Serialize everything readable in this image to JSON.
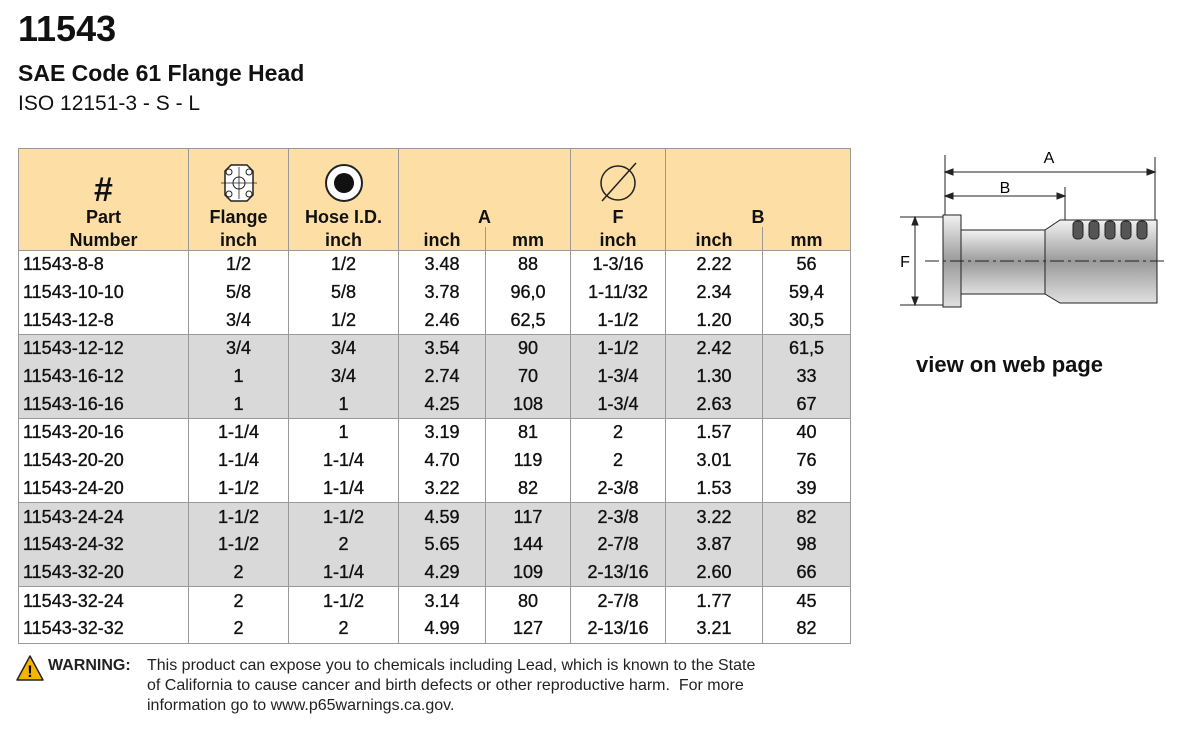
{
  "header": {
    "title": "11543",
    "subtitle": "SAE Code 61 Flange Head",
    "standard": "ISO 12151-3 - S - L"
  },
  "table": {
    "head": {
      "hash": "#",
      "part": "Part",
      "flange": "Flange",
      "hose": "Hose I.D.",
      "a": "A",
      "f": "F",
      "b": "B"
    },
    "units": [
      "Number",
      "inch",
      "inch",
      "inch",
      "mm",
      "inch",
      "inch",
      "mm"
    ],
    "rows": [
      [
        "11543-8-8",
        "1/2",
        "1/2",
        "3.48",
        "88",
        "1-3/16",
        "2.22",
        "56"
      ],
      [
        "11543-10-10",
        "5/8",
        "5/8",
        "3.78",
        "96,0",
        "1-11/32",
        "2.34",
        "59,4"
      ],
      [
        "11543-12-8",
        "3/4",
        "1/2",
        "2.46",
        "62,5",
        "1-1/2",
        "1.20",
        "30,5"
      ],
      [
        "11543-12-12",
        "3/4",
        "3/4",
        "3.54",
        "90",
        "1-1/2",
        "2.42",
        "61,5"
      ],
      [
        "11543-16-12",
        "1",
        "3/4",
        "2.74",
        "70",
        "1-3/4",
        "1.30",
        "33"
      ],
      [
        "11543-16-16",
        "1",
        "1",
        "4.25",
        "108",
        "1-3/4",
        "2.63",
        "67"
      ],
      [
        "11543-20-16",
        "1-1/4",
        "1",
        "3.19",
        "81",
        "2",
        "1.57",
        "40"
      ],
      [
        "11543-20-20",
        "1-1/4",
        "1-1/4",
        "4.70",
        "119",
        "2",
        "3.01",
        "76"
      ],
      [
        "11543-24-20",
        "1-1/2",
        "1-1/4",
        "3.22",
        "82",
        "2-3/8",
        "1.53",
        "39"
      ],
      [
        "11543-24-24",
        "1-1/2",
        "1-1/2",
        "4.59",
        "117",
        "2-3/8",
        "3.22",
        "82"
      ],
      [
        "11543-24-32",
        "1-1/2",
        "2",
        "5.65",
        "144",
        "2-7/8",
        "3.87",
        "98"
      ],
      [
        "11543-32-20",
        "2",
        "1-1/4",
        "4.29",
        "109",
        "2-13/16",
        "2.60",
        "66"
      ],
      [
        "11543-32-24",
        "2",
        "1-1/2",
        "3.14",
        "80",
        "2-7/8",
        "1.77",
        "45"
      ],
      [
        "11543-32-32",
        "2",
        "2",
        "4.99",
        "127",
        "2-13/16",
        "3.21",
        "82"
      ]
    ]
  },
  "warning": {
    "label": "WARNING:",
    "lines": [
      "This product can expose you to chemicals including Lead, which is known to the State",
      "of California to cause cancer and birth defects or other reproductive harm.  For more",
      "information go to www.p65warnings.ca.gov."
    ]
  },
  "diagram": {
    "a": "A",
    "b": "B",
    "f": "F"
  },
  "link": "view on web page"
}
